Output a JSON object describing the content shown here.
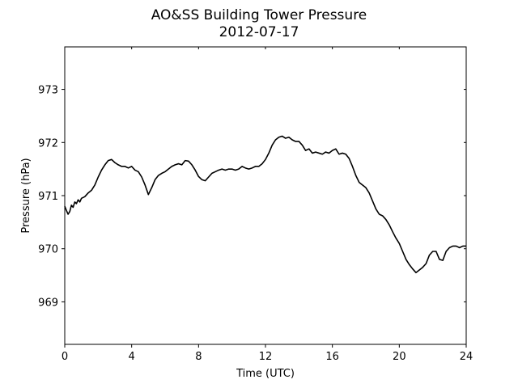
{
  "chart_data": {
    "type": "line",
    "title": "AO&SS Building Tower Pressure",
    "subtitle": "2012-07-17",
    "xlabel": "Time (UTC)",
    "ylabel": "Pressure (hPa)",
    "xlim": [
      0,
      24
    ],
    "ylim": [
      968.2,
      973.8
    ],
    "xticks": [
      0,
      4,
      8,
      12,
      16,
      20,
      24
    ],
    "xtick_labels": [
      "0",
      "4",
      "8",
      "12",
      "16",
      "20",
      "24"
    ],
    "yticks": [
      969,
      970,
      971,
      972,
      973
    ],
    "ytick_labels": [
      "969",
      "970",
      "971",
      "972",
      "973"
    ],
    "grid": false,
    "legend": "none",
    "series_color": "#000000",
    "series": [
      {
        "x": [
          0,
          0.1,
          0.2,
          0.3,
          0.4,
          0.5,
          0.6,
          0.7,
          0.8,
          0.9,
          1.0,
          1.2,
          1.4,
          1.6,
          1.8,
          2.0,
          2.2,
          2.4,
          2.6,
          2.8,
          3.0,
          3.2,
          3.4,
          3.6,
          3.8,
          4.0,
          4.2,
          4.4,
          4.6,
          4.8,
          5.0,
          5.2,
          5.4,
          5.6,
          5.8,
          6.0,
          6.2,
          6.4,
          6.6,
          6.8,
          7.0,
          7.2,
          7.4,
          7.6,
          7.8,
          8.0,
          8.2,
          8.4,
          8.6,
          8.8,
          9.0,
          9.2,
          9.4,
          9.6,
          9.8,
          10.0,
          10.2,
          10.4,
          10.6,
          10.8,
          11.0,
          11.2,
          11.4,
          11.6,
          11.8,
          12.0,
          12.2,
          12.4,
          12.6,
          12.8,
          13.0,
          13.2,
          13.4,
          13.6,
          13.8,
          14.0,
          14.2,
          14.4,
          14.6,
          14.8,
          15.0,
          15.2,
          15.4,
          15.6,
          15.8,
          16.0,
          16.2,
          16.4,
          16.6,
          16.8,
          17.0,
          17.2,
          17.4,
          17.6,
          17.8,
          18.0,
          18.2,
          18.4,
          18.6,
          18.8,
          19.0,
          19.2,
          19.4,
          19.6,
          19.8,
          20.0,
          20.2,
          20.4,
          20.6,
          20.8,
          21.0,
          21.2,
          21.4,
          21.6,
          21.8,
          22.0,
          22.2,
          22.4,
          22.6,
          22.8,
          23.0,
          23.2,
          23.4,
          23.6,
          23.8,
          24.0
        ],
        "y": [
          970.8,
          970.72,
          970.65,
          970.7,
          970.82,
          970.78,
          970.88,
          970.85,
          970.92,
          970.88,
          970.95,
          970.98,
          971.05,
          971.1,
          971.2,
          971.35,
          971.48,
          971.58,
          971.66,
          971.68,
          971.62,
          971.58,
          971.55,
          971.55,
          971.52,
          971.55,
          971.48,
          971.45,
          971.35,
          971.2,
          971.02,
          971.15,
          971.3,
          971.38,
          971.42,
          971.45,
          971.5,
          971.55,
          971.58,
          971.6,
          971.58,
          971.66,
          971.65,
          971.58,
          971.48,
          971.36,
          971.3,
          971.28,
          971.35,
          971.42,
          971.45,
          971.48,
          971.5,
          971.48,
          971.5,
          971.5,
          971.48,
          971.5,
          971.55,
          971.52,
          971.5,
          971.52,
          971.55,
          971.55,
          971.6,
          971.68,
          971.8,
          971.95,
          972.05,
          972.1,
          972.12,
          972.08,
          972.1,
          972.05,
          972.02,
          972.02,
          971.95,
          971.85,
          971.88,
          971.8,
          971.82,
          971.8,
          971.78,
          971.82,
          971.8,
          971.85,
          971.88,
          971.78,
          971.8,
          971.78,
          971.7,
          971.55,
          971.38,
          971.25,
          971.2,
          971.15,
          971.05,
          970.9,
          970.75,
          970.65,
          970.62,
          970.55,
          970.45,
          970.32,
          970.2,
          970.1,
          969.95,
          969.8,
          969.7,
          969.62,
          969.55,
          969.6,
          969.65,
          969.72,
          969.88,
          969.95,
          969.95,
          969.8,
          969.78,
          969.95,
          970.02,
          970.05,
          970.05,
          970.02,
          970.05,
          970.05
        ]
      }
    ]
  }
}
